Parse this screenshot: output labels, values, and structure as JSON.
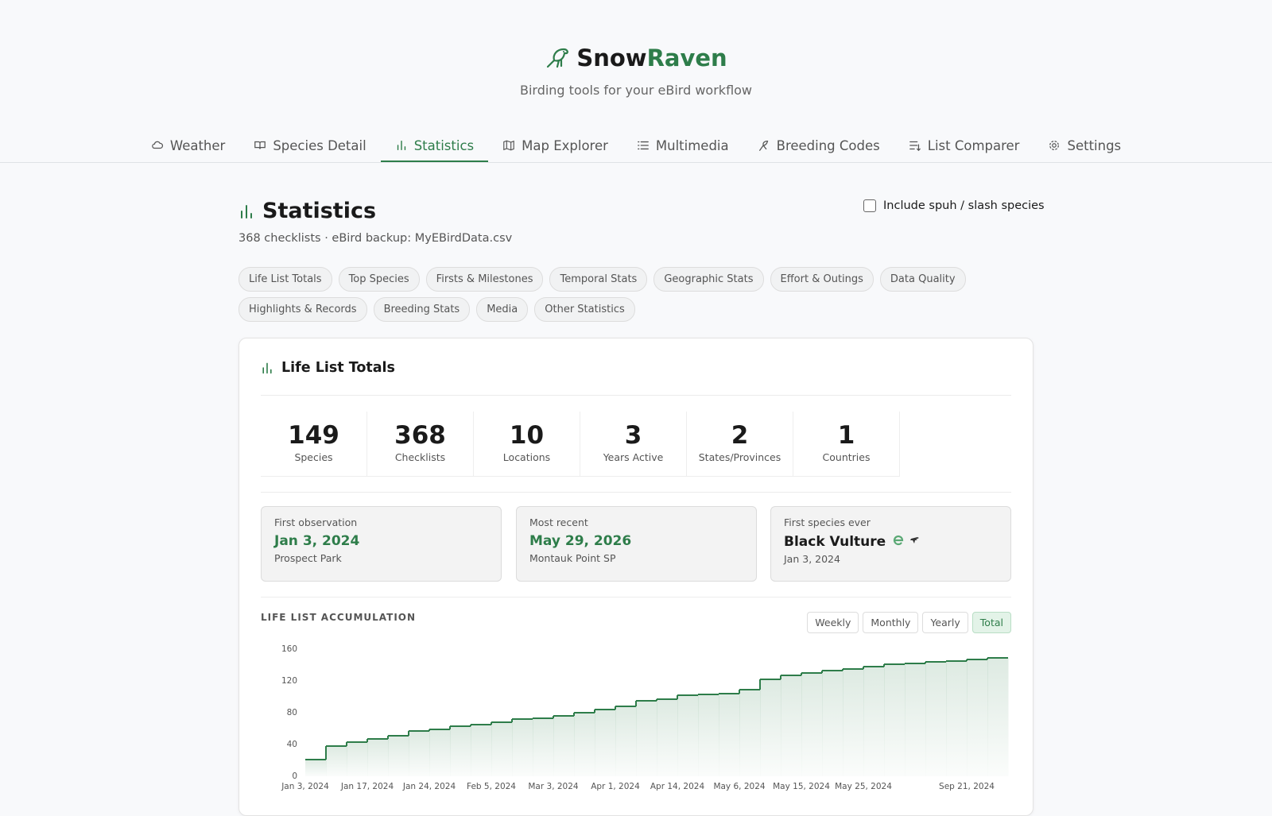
{
  "header": {
    "brand_first": "Snow",
    "brand_second": "Raven",
    "tagline": "Birding tools for your eBird workflow"
  },
  "nav": {
    "tabs": [
      "Weather",
      "Species Detail",
      "Statistics",
      "Map Explorer",
      "Multimedia",
      "Breeding Codes",
      "List Comparer",
      "Settings"
    ],
    "active_tab": 2
  },
  "page": {
    "title": "Statistics",
    "summary": "368 checklists · eBird backup: MyEBirdData.csv",
    "include_spuh_label": "Include spuh / slash species",
    "include_spuh_checked": false,
    "sections": [
      "Life List Totals",
      "Top Species",
      "Firsts & Milestones",
      "Temporal Stats",
      "Geographic Stats",
      "Effort & Outings",
      "Data Quality",
      "Highlights & Records",
      "Breeding Stats",
      "Media",
      "Other Statistics"
    ]
  },
  "card": {
    "title": "Life List Totals",
    "totals": [
      {
        "value": 149,
        "label": "Species"
      },
      {
        "value": 368,
        "label": "Checklists"
      },
      {
        "value": 10,
        "label": "Locations"
      },
      {
        "value": 3,
        "label": "Years Active"
      },
      {
        "value": 2,
        "label": "States/Provinces"
      },
      {
        "value": 1,
        "label": "Countries"
      }
    ],
    "highlights": [
      {
        "label": "First observation",
        "value": "Jan 3, 2024",
        "detail": "Prospect Park"
      },
      {
        "label": "Most recent",
        "value": "May 29, 2026",
        "detail": "Montauk Point SP"
      },
      {
        "label": "First species ever",
        "value": "Black Vulture",
        "detail": "Jan 3, 2024"
      }
    ]
  },
  "accumulation": {
    "views": [
      "Weekly",
      "Monthly",
      "Yearly",
      "Total"
    ],
    "active_view": 3
  },
  "chart_data": {
    "type": "step",
    "title": "LIFE LIST ACCUMULATION",
    "color": "#2e7d4a",
    "grid": false,
    "categories": [
      "Jan 3, 2024",
      null,
      null,
      "Jan 17, 2024",
      null,
      null,
      "Jan 24, 2024",
      null,
      null,
      "Feb 5, 2024",
      null,
      null,
      "Mar 3, 2024",
      null,
      null,
      "Apr 1, 2024",
      null,
      null,
      "Apr 14, 2024",
      null,
      null,
      "May 6, 2024",
      null,
      null,
      "May 15, 2024",
      null,
      null,
      "May 25, 2024",
      null,
      null,
      null,
      null,
      "Sep 21, 2024",
      null
    ],
    "values": [
      21,
      38,
      43,
      47,
      51,
      57,
      59,
      63,
      65,
      68,
      72,
      73,
      76,
      80,
      84,
      88,
      95,
      97,
      102,
      103,
      104,
      109,
      122,
      127,
      130,
      133,
      135,
      138,
      141,
      142,
      144,
      145,
      147,
      149
    ],
    "ylim": [
      0,
      160
    ],
    "yticks": [
      0,
      40,
      80,
      120,
      160
    ]
  }
}
